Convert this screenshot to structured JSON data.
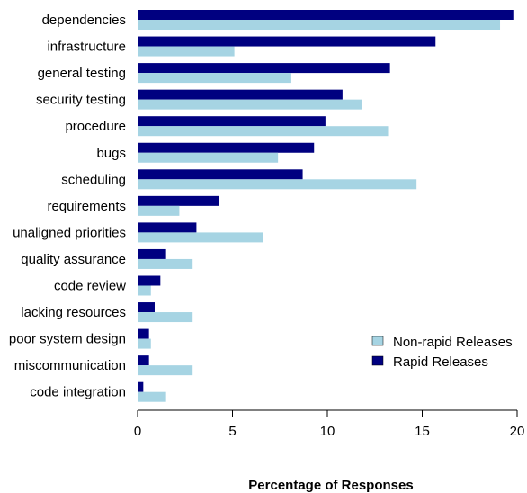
{
  "chart_data": {
    "type": "bar",
    "orientation": "horizontal",
    "categories": [
      "dependencies",
      "infrastructure",
      "general testing",
      "security testing",
      "procedure",
      "bugs",
      "scheduling",
      "requirements",
      "unaligned priorities",
      "quality assurance",
      "code review",
      "lacking resources",
      "poor system design",
      "miscommunication",
      "code integration"
    ],
    "series": [
      {
        "name": "Rapid Releases",
        "color": "#000080",
        "values": [
          19.8,
          15.7,
          13.3,
          10.8,
          9.9,
          9.3,
          8.7,
          4.3,
          3.1,
          1.5,
          1.2,
          0.9,
          0.6,
          0.6,
          0.3
        ]
      },
      {
        "name": "Non-rapid Releases",
        "color": "#a6d4e3",
        "values": [
          19.1,
          5.1,
          8.1,
          11.8,
          13.2,
          7.4,
          14.7,
          2.2,
          6.6,
          2.9,
          0.7,
          2.9,
          0.7,
          2.9,
          1.5
        ]
      }
    ],
    "xlim": [
      0,
      20
    ],
    "xticks": [
      "0",
      "5",
      "10",
      "15",
      "20"
    ],
    "xlabel": "Percentage of Responses",
    "ylabel": "",
    "title": "",
    "grid": false,
    "legend_position": "bottom-right",
    "legend_order": [
      "Non-rapid Releases",
      "Rapid Releases"
    ]
  }
}
